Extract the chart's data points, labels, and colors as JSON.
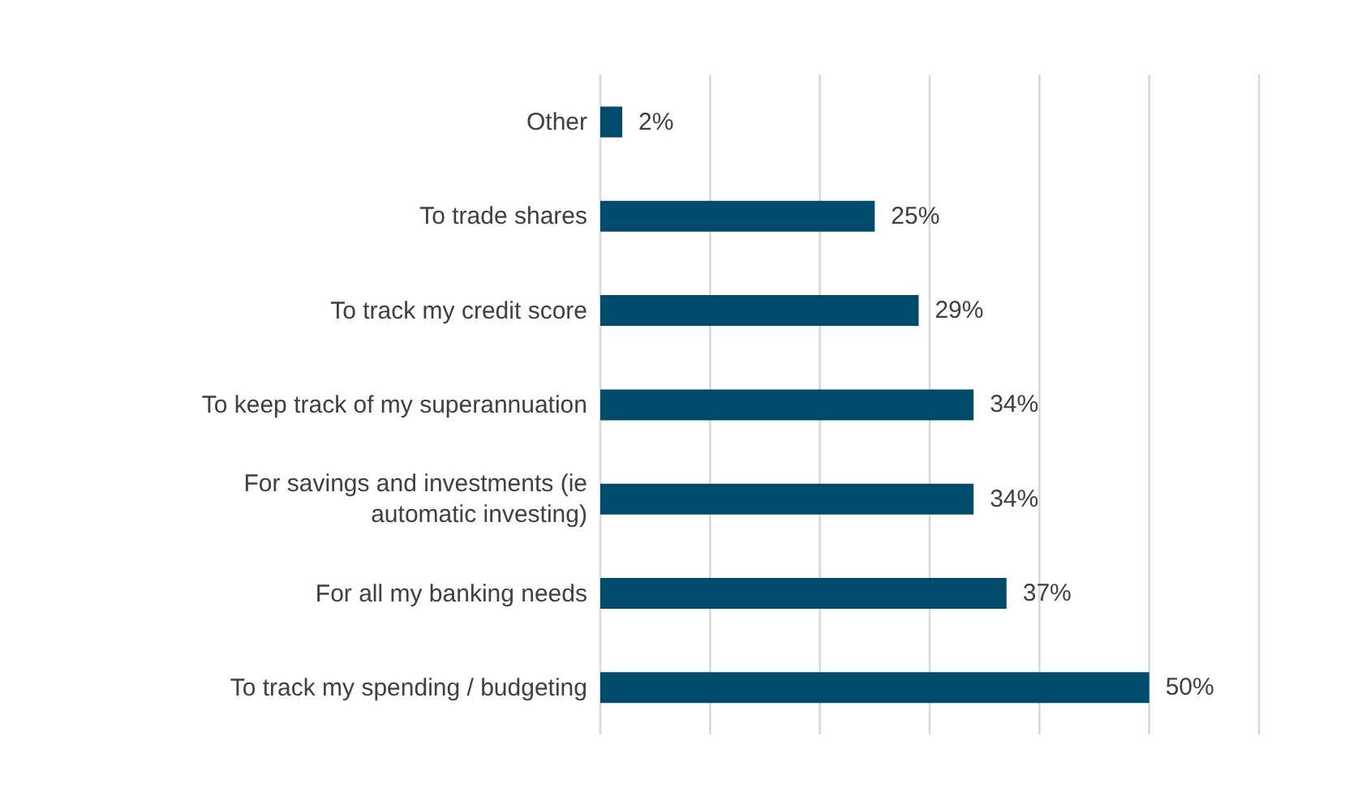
{
  "chart_data": {
    "type": "bar",
    "orientation": "horizontal",
    "categories": [
      "Other",
      "To trade shares",
      "To track my credit score",
      "To keep track of my superannuation",
      "For savings and investments (ie automatic investing)",
      "For all my banking needs",
      "To track my spending / budgeting"
    ],
    "values": [
      2,
      25,
      29,
      34,
      34,
      37,
      50
    ],
    "value_labels": [
      "2%",
      "25%",
      "29%",
      "34%",
      "34%",
      "37%",
      "50%"
    ],
    "color": "#004b6b",
    "xlim": [
      0,
      60
    ],
    "xticks": [
      {
        "value": 0,
        "label": null
      },
      {
        "value": 10,
        "label": null
      },
      {
        "value": 20,
        "label": null
      },
      {
        "value": 30,
        "label": null
      },
      {
        "value": 40,
        "label": null
      },
      {
        "value": 50,
        "label": null
      },
      {
        "value": 60,
        "label": null
      }
    ],
    "grid": "x",
    "tick_labels": "y"
  }
}
